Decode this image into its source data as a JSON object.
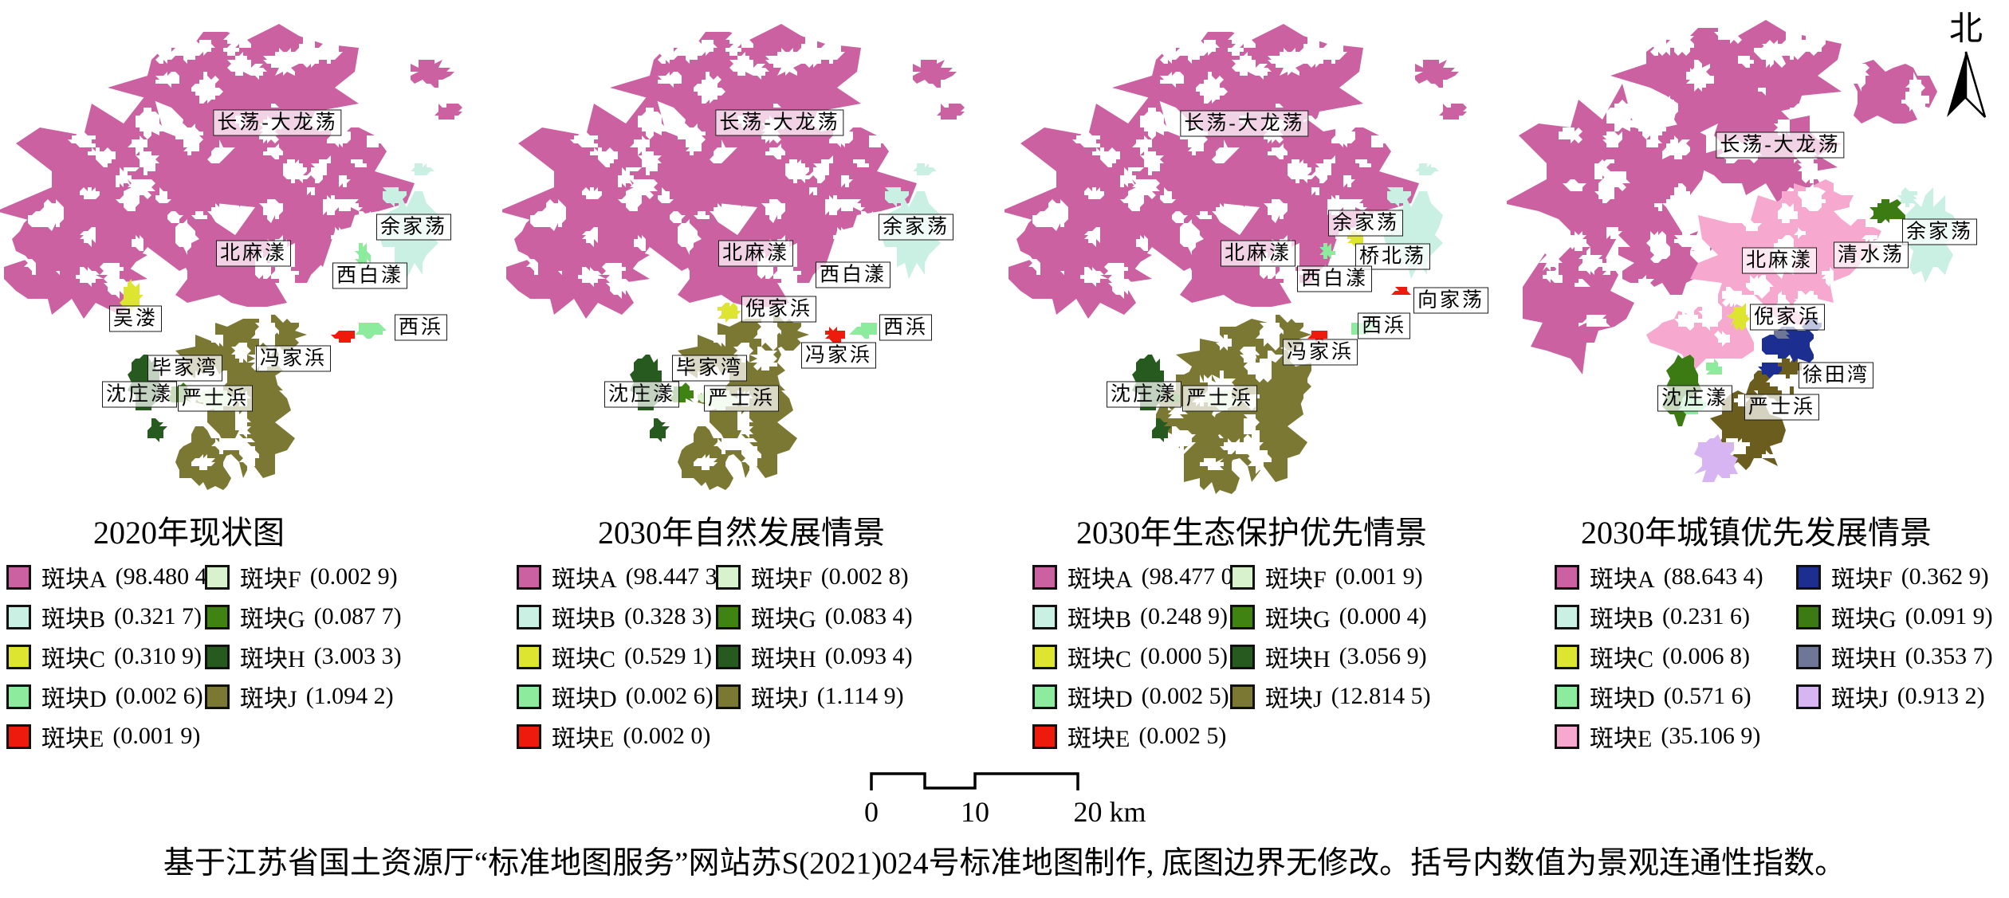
{
  "page": {
    "background": "#ffffff"
  },
  "north_arrow": {
    "label": "北"
  },
  "scale_bar": {
    "tick_labels": [
      "0",
      "10",
      "20 km"
    ]
  },
  "caption": "基于江苏省国土资源厅“标准地图服务”网站苏S(2021)024号标准地图制作, 底图边界无修改。括号内数值为景观连通性指数。",
  "maps": [
    {
      "title": "2020年现状图",
      "labels": [
        "长荡-大龙荡",
        "余家荡",
        "北麻漾",
        "西白漾",
        "吴溇",
        "西浜",
        "冯家浜",
        "毕家湾",
        "沈庄漾",
        "严士浜"
      ],
      "legend": [
        {
          "cls": "A",
          "label": "斑块A",
          "value": "(98.480 4)",
          "color": "#cb61a1"
        },
        {
          "cls": "B",
          "label": "斑块B",
          "value": "(0.321 7)",
          "color": "#c9f0e3"
        },
        {
          "cls": "C",
          "label": "斑块C",
          "value": "(0.310 9)",
          "color": "#dde531"
        },
        {
          "cls": "D",
          "label": "斑块D",
          "value": "(0.002 6)",
          "color": "#8deb9e"
        },
        {
          "cls": "E",
          "label": "斑块E",
          "value": "(0.001 9)",
          "color": "#ee1b0d"
        },
        {
          "cls": "F",
          "label": "斑块F",
          "value": "(0.002 9)",
          "color": "#d8f2ce"
        },
        {
          "cls": "G",
          "label": "斑块G",
          "value": "(0.087 7)",
          "color": "#3f8312"
        },
        {
          "cls": "H",
          "label": "斑块H",
          "value": "(3.003 3)",
          "color": "#275a1e"
        },
        {
          "cls": "J",
          "label": "斑块J",
          "value": "(1.094 2)",
          "color": "#7a7833"
        }
      ]
    },
    {
      "title": "2030年自然发展情景",
      "labels": [
        "长荡-大龙荡",
        "余家荡",
        "北麻漾",
        "西白漾",
        "倪家浜",
        "西浜",
        "冯家浜",
        "毕家湾",
        "沈庄漾",
        "严士浜"
      ],
      "legend": [
        {
          "cls": "A",
          "label": "斑块A",
          "value": "(98.447 3)",
          "color": "#cb61a1"
        },
        {
          "cls": "B",
          "label": "斑块B",
          "value": "(0.328 3)",
          "color": "#c9f0e3"
        },
        {
          "cls": "C",
          "label": "斑块C",
          "value": "(0.529 1)",
          "color": "#dde531"
        },
        {
          "cls": "D",
          "label": "斑块D",
          "value": "(0.002 6)",
          "color": "#8deb9e"
        },
        {
          "cls": "E",
          "label": "斑块E",
          "value": "(0.002 0)",
          "color": "#ee1b0d"
        },
        {
          "cls": "F",
          "label": "斑块F",
          "value": "(0.002 8)",
          "color": "#d8f2ce"
        },
        {
          "cls": "G",
          "label": "斑块G",
          "value": "(0.083 4)",
          "color": "#3f8312"
        },
        {
          "cls": "H",
          "label": "斑块H",
          "value": "(0.093 4)",
          "color": "#275a1e"
        },
        {
          "cls": "J",
          "label": "斑块J",
          "value": "(1.114 9)",
          "color": "#7a7833"
        }
      ]
    },
    {
      "title": "2030年生态保护优先情景",
      "labels": [
        "长荡-大龙荡",
        "余家荡",
        "桥北荡",
        "北麻漾",
        "西白漾",
        "向家荡",
        "西浜",
        "冯家浜",
        "沈庄漾",
        "严士浜"
      ],
      "legend": [
        {
          "cls": "A",
          "label": "斑块A",
          "value": "(98.477 0)",
          "color": "#cb61a1"
        },
        {
          "cls": "B",
          "label": "斑块B",
          "value": "(0.248 9)",
          "color": "#c9f0e3"
        },
        {
          "cls": "C",
          "label": "斑块C",
          "value": "(0.000 5)",
          "color": "#dde531"
        },
        {
          "cls": "D",
          "label": "斑块D",
          "value": "(0.002 5)",
          "color": "#8deb9e"
        },
        {
          "cls": "E",
          "label": "斑块E",
          "value": "(0.002 5)",
          "color": "#ee1b0d"
        },
        {
          "cls": "F",
          "label": "斑块F",
          "value": "(0.001 9)",
          "color": "#d8f2ce"
        },
        {
          "cls": "G",
          "label": "斑块G",
          "value": "(0.000 4)",
          "color": "#3f8312"
        },
        {
          "cls": "H",
          "label": "斑块H",
          "value": "(3.056 9)",
          "color": "#275a1e"
        },
        {
          "cls": "J",
          "label": "斑块J",
          "value": "(12.814 5)",
          "color": "#7a7833"
        }
      ]
    },
    {
      "title": "2030年城镇优先发展情景",
      "labels": [
        "长荡-大龙荡",
        "余家荡",
        "清水荡",
        "北麻漾",
        "倪家浜",
        "徐田湾",
        "沈庄漾",
        "严士浜"
      ],
      "extra_colors": {
        "O": "#6b5d1e"
      },
      "legend": [
        {
          "cls": "A",
          "label": "斑块A",
          "value": "(88.643 4)",
          "color": "#cb61a1"
        },
        {
          "cls": "B",
          "label": "斑块B",
          "value": "(0.231 6)",
          "color": "#c9f0e3"
        },
        {
          "cls": "C",
          "label": "斑块C",
          "value": "(0.006 8)",
          "color": "#dde531"
        },
        {
          "cls": "D",
          "label": "斑块D",
          "value": "(0.571 6)",
          "color": "#8deb9e"
        },
        {
          "cls": "E",
          "label": "斑块E",
          "value": "(35.106 9)",
          "color": "#f7a8ce"
        },
        {
          "cls": "F",
          "label": "斑块F",
          "value": "(0.362 9)",
          "color": "#1c2e90"
        },
        {
          "cls": "G",
          "label": "斑块G",
          "value": "(0.091 9)",
          "color": "#3c7a14"
        },
        {
          "cls": "H",
          "label": "斑块H",
          "value": "(0.353 7)",
          "color": "#6f7798"
        },
        {
          "cls": "J",
          "label": "斑块J",
          "value": "(0.913 2)",
          "color": "#d7b5f2"
        }
      ]
    }
  ]
}
